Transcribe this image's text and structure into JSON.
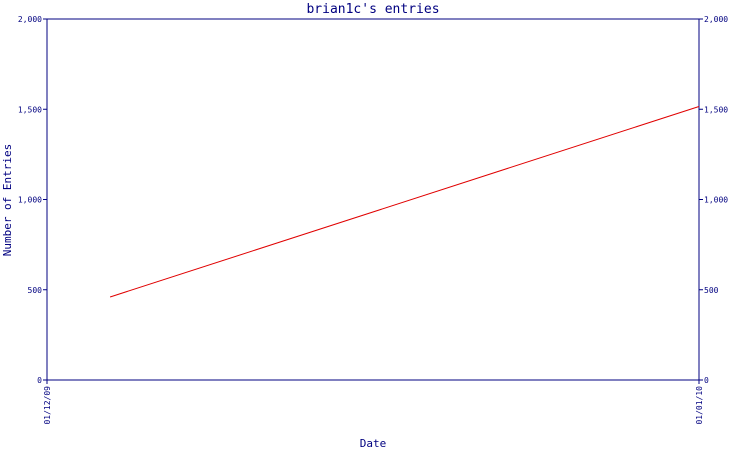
{
  "chart_data": {
    "type": "line",
    "title": "brian1c's entries",
    "xlabel": "Date",
    "ylabel": "Number of Entries",
    "x_tick_labels": [
      "01/12/09",
      "01/01/10"
    ],
    "x_range": [
      "01/12/09",
      "01/01/10"
    ],
    "ylim": [
      0,
      2000
    ],
    "y_ticks": [
      0,
      500,
      1000,
      1500,
      2000
    ],
    "y_tick_labels": [
      "0",
      "500",
      "1,000",
      "1,500",
      "2,000"
    ],
    "series": [
      {
        "x": [
          "04/12/09",
          "01/01/10"
        ],
        "values": [
          460,
          1515
        ]
      }
    ],
    "grid": false,
    "legend": "none",
    "colors": {
      "axis": "#000080",
      "line": "#e00000",
      "title": "#000080",
      "labels": "#000080"
    }
  }
}
